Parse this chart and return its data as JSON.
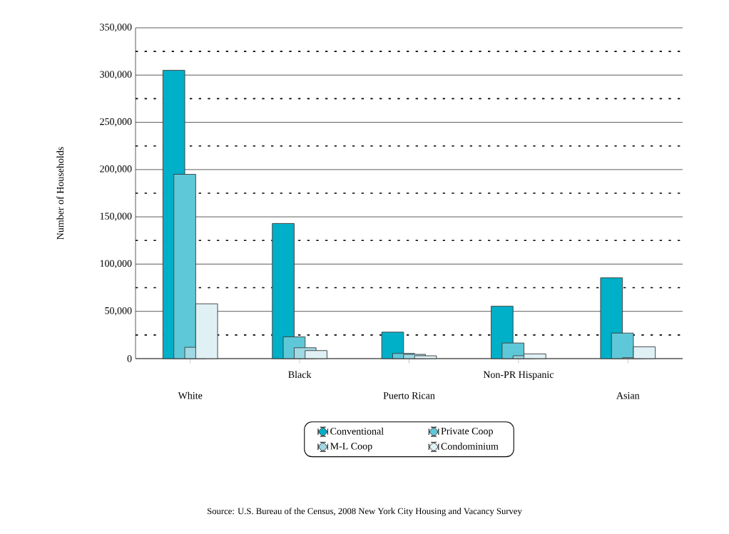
{
  "chart_data": {
    "type": "bar",
    "ylabel": "Number of Households",
    "categories": [
      "White",
      "Black",
      "Puerto Rican",
      "Non-PR Hispanic",
      "Asian"
    ],
    "series": [
      {
        "name": "Conventional",
        "color": "#00afc8",
        "values": [
          305000,
          143000,
          28000,
          55500,
          85500
        ]
      },
      {
        "name": "Private Coop",
        "color": "#5ec8d8",
        "values": [
          195000,
          23000,
          5500,
          16500,
          27000
        ]
      },
      {
        "name": "M-L Coop",
        "color": "#a0d8e3",
        "values": [
          12000,
          11500,
          4500,
          3000,
          1000
        ]
      },
      {
        "name": "Condominium",
        "color": "#dff1f5",
        "values": [
          58000,
          8500,
          3000,
          5000,
          12500
        ]
      }
    ],
    "ylim": [
      0,
      350000
    ],
    "yticks": [
      0,
      {
        "value": 25000,
        "label": null
      },
      {
        "value": 50000,
        "label": "50,000"
      },
      {
        "value": 75000,
        "label": null
      },
      {
        "value": 100000,
        "label": "100,000"
      },
      {
        "value": 125000,
        "label": null
      },
      {
        "value": 150000,
        "label": "150,000"
      },
      {
        "value": 175000,
        "label": null
      },
      {
        "value": 200000,
        "label": "200,000"
      },
      {
        "value": 225000,
        "label": null
      },
      {
        "value": 250000,
        "label": "250,000"
      },
      {
        "value": 275000,
        "label": null
      },
      {
        "value": 300000,
        "label": "300,000"
      },
      {
        "value": 325000,
        "label": null
      },
      {
        "value": 350000,
        "label": "350,000"
      }
    ],
    "grid": "y",
    "legend": "bottom",
    "annotations": [
      "Source:  U.S. Bureau of the Census, 2008 New York City Housing and Vacancy Survey"
    ]
  }
}
